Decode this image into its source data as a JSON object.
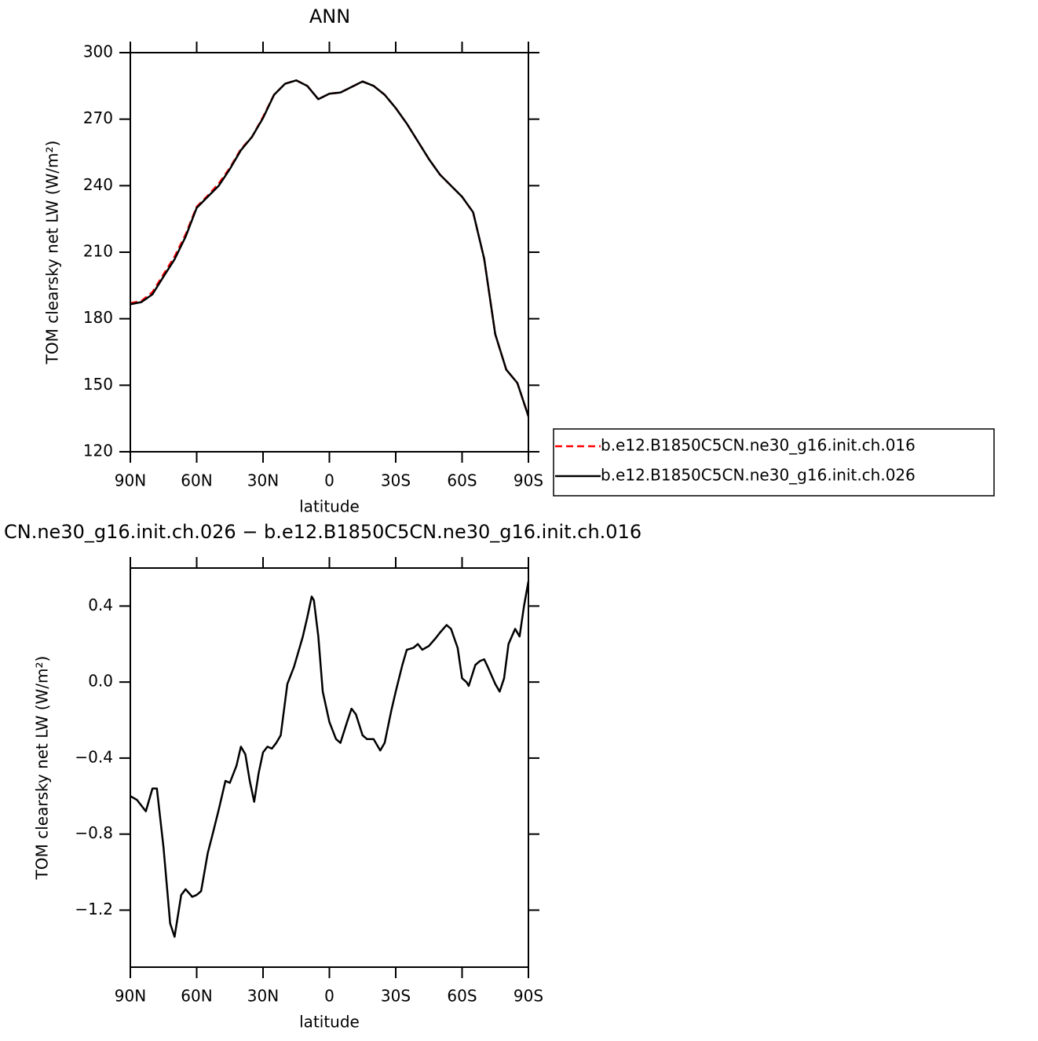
{
  "chart_data": [
    {
      "type": "line",
      "title": "ANN",
      "x_label": "latitude",
      "y_label": "TOM clearsky net LW (W/m²)",
      "xlim": [
        90,
        -90
      ],
      "xticks": [
        {
          "value": 90,
          "label": "90N"
        },
        {
          "value": 60,
          "label": "60N"
        },
        {
          "value": 30,
          "label": "30N"
        },
        0,
        {
          "value": -30,
          "label": "30S"
        },
        {
          "value": -60,
          "label": "60S"
        },
        {
          "value": -90,
          "label": "90S"
        }
      ],
      "ylim": [
        120,
        300
      ],
      "yticks": [
        120,
        150,
        180,
        210,
        240,
        270,
        300
      ],
      "legend": "right",
      "x": [
        90,
        85,
        80,
        75,
        70,
        65,
        60,
        55,
        50,
        45,
        40,
        35,
        30,
        25,
        20,
        15,
        10,
        5,
        0,
        -5,
        -10,
        -15,
        -20,
        -25,
        -30,
        -35,
        -40,
        -45,
        -50,
        -55,
        -60,
        -65,
        -70,
        -75,
        -80,
        -85,
        -90
      ],
      "series": [
        {
          "name": "b.e12.B1850C5CN.ne30_g16.init.ch.016",
          "color": "#ff0000",
          "dashed": true,
          "values": [
            187,
            188,
            192,
            200,
            208,
            218,
            230.5,
            235.5,
            241,
            248,
            256.5,
            262,
            271,
            281,
            286,
            287.5,
            285,
            279,
            281.5,
            282,
            284.5,
            287,
            285,
            281,
            275,
            268,
            260,
            252,
            245,
            240,
            235,
            228,
            207,
            173,
            157,
            151,
            136
          ]
        },
        {
          "name": "b.e12.B1850C5CN.ne30_g16.init.ch.026",
          "color": "#000000",
          "dashed": false,
          "values": [
            186.5,
            187.5,
            191,
            199,
            206.8,
            217,
            230,
            235,
            240,
            247.5,
            256,
            262,
            270.5,
            281,
            286,
            287.5,
            285,
            279,
            281.5,
            282,
            284.5,
            287,
            285,
            281,
            275,
            268,
            260,
            252,
            245,
            240,
            235,
            228,
            207,
            173,
            157,
            151,
            136
          ]
        }
      ]
    },
    {
      "type": "line",
      "title": "CN.ne30_g16.init.ch.026 − b.e12.B1850C5CN.ne30_g16.init.ch.016",
      "x_label": "latitude",
      "y_label": "TOM clearsky net LW (W/m²)",
      "xlim": [
        90,
        -90
      ],
      "xticks": [
        {
          "value": 90,
          "label": "90N"
        },
        {
          "value": 60,
          "label": "60N"
        },
        {
          "value": 30,
          "label": "30N"
        },
        0,
        {
          "value": -30,
          "label": "30S"
        },
        {
          "value": -60,
          "label": "60S"
        },
        {
          "value": -90,
          "label": "90S"
        }
      ],
      "ylim": [
        -1.5,
        0.6
      ],
      "yticks": [
        {
          "value": -1.2,
          "label": "−1.2"
        },
        {
          "value": -0.8,
          "label": "−0.8"
        },
        {
          "value": -0.4,
          "label": "−0.4"
        },
        {
          "value": 0,
          "label": "0.0"
        },
        0.4
      ],
      "x": [
        90,
        87,
        83,
        80,
        78,
        75,
        72,
        70,
        67,
        65,
        62,
        60,
        58,
        55,
        53,
        50,
        47,
        45,
        42,
        40,
        38,
        36,
        34,
        32,
        30,
        28,
        26,
        24,
        22,
        19,
        16,
        12,
        10,
        8,
        7,
        5,
        3,
        0,
        -3,
        -5,
        -8,
        -10,
        -12,
        -15,
        -17,
        -20,
        -23,
        -25,
        -28,
        -30,
        -33,
        -35,
        -38,
        -40,
        -42,
        -45,
        -48,
        -50,
        -53,
        -55,
        -58,
        -60,
        -62,
        -63,
        -66,
        -68,
        -70,
        -72,
        -75,
        -77,
        -79,
        -81,
        -84,
        -86,
        -88,
        -90
      ],
      "series": [
        {
          "color": "#000000",
          "values": [
            -0.6,
            -0.62,
            -0.68,
            -0.56,
            -0.56,
            -0.87,
            -1.27,
            -1.34,
            -1.12,
            -1.09,
            -1.13,
            -1.12,
            -1.1,
            -0.9,
            -0.81,
            -0.67,
            -0.52,
            -0.53,
            -0.44,
            -0.34,
            -0.38,
            -0.52,
            -0.63,
            -0.48,
            -0.37,
            -0.34,
            -0.35,
            -0.32,
            -0.28,
            -0.01,
            0.08,
            0.24,
            0.34,
            0.45,
            0.43,
            0.24,
            -0.05,
            -0.21,
            -0.3,
            -0.32,
            -0.21,
            -0.14,
            -0.17,
            -0.28,
            -0.3,
            -0.3,
            -0.36,
            -0.32,
            -0.15,
            -0.05,
            0.09,
            0.17,
            0.18,
            0.2,
            0.17,
            0.19,
            0.23,
            0.26,
            0.3,
            0.28,
            0.18,
            0.02,
            0,
            -0.02,
            0.09,
            0.11,
            0.12,
            0.07,
            -0.01,
            -0.05,
            0.02,
            0.2,
            0.28,
            0.24,
            0.4,
            0.53
          ]
        }
      ]
    }
  ]
}
